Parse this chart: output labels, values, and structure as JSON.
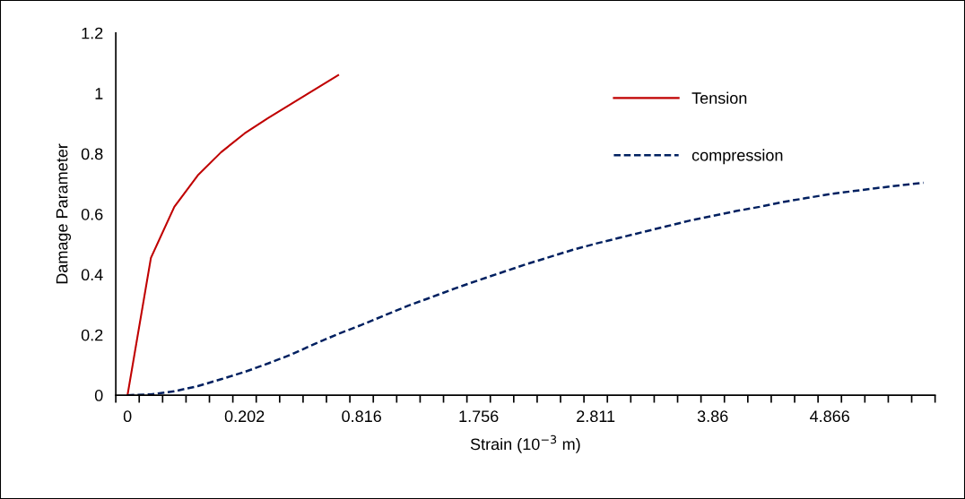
{
  "chart_data": {
    "type": "line",
    "xlabel": "Strain (10$^{−3}$ m)",
    "ylabel": "Damage Parameter",
    "categories": [
      "0",
      null,
      null,
      null,
      null,
      "0.202",
      null,
      null,
      null,
      null,
      "0.816",
      null,
      null,
      null,
      null,
      "1.756",
      null,
      null,
      null,
      null,
      "2.811",
      null,
      null,
      null,
      null,
      "3.86",
      null,
      null,
      null,
      null,
      "4.866",
      null,
      null,
      null,
      null
    ],
    "series": [
      {
        "name": "Tension",
        "color": "#c00000",
        "line_style": "solid",
        "values": [
          0,
          0.455,
          0.624,
          0.728,
          0.805,
          0.867,
          0.918,
          0.965,
          1.013,
          1.06,
          null,
          null,
          null,
          null,
          null,
          null,
          null,
          null,
          null,
          null,
          null,
          null,
          null,
          null,
          null,
          null,
          null,
          null,
          null,
          null,
          null,
          null,
          null,
          null,
          null
        ]
      },
      {
        "name": "compression",
        "color": "#002060",
        "line_style": "dashed",
        "values": [
          0,
          0.003,
          0.013,
          0.03,
          0.053,
          0.077,
          0.105,
          0.135,
          0.17,
          0.203,
          0.233,
          0.265,
          0.297,
          0.325,
          0.354,
          0.381,
          0.407,
          0.433,
          0.457,
          0.481,
          0.502,
          0.521,
          0.54,
          0.559,
          0.578,
          0.594,
          0.61,
          0.624,
          0.64,
          0.653,
          0.666,
          0.676,
          0.686,
          0.695,
          0.704
        ]
      }
    ],
    "ylim": [
      0,
      1.2
    ],
    "yticks": [
      0,
      0.2,
      0.4,
      0.6,
      0.8,
      1,
      1.2
    ],
    "grid": false,
    "legend": "top right",
    "marker": "none"
  }
}
